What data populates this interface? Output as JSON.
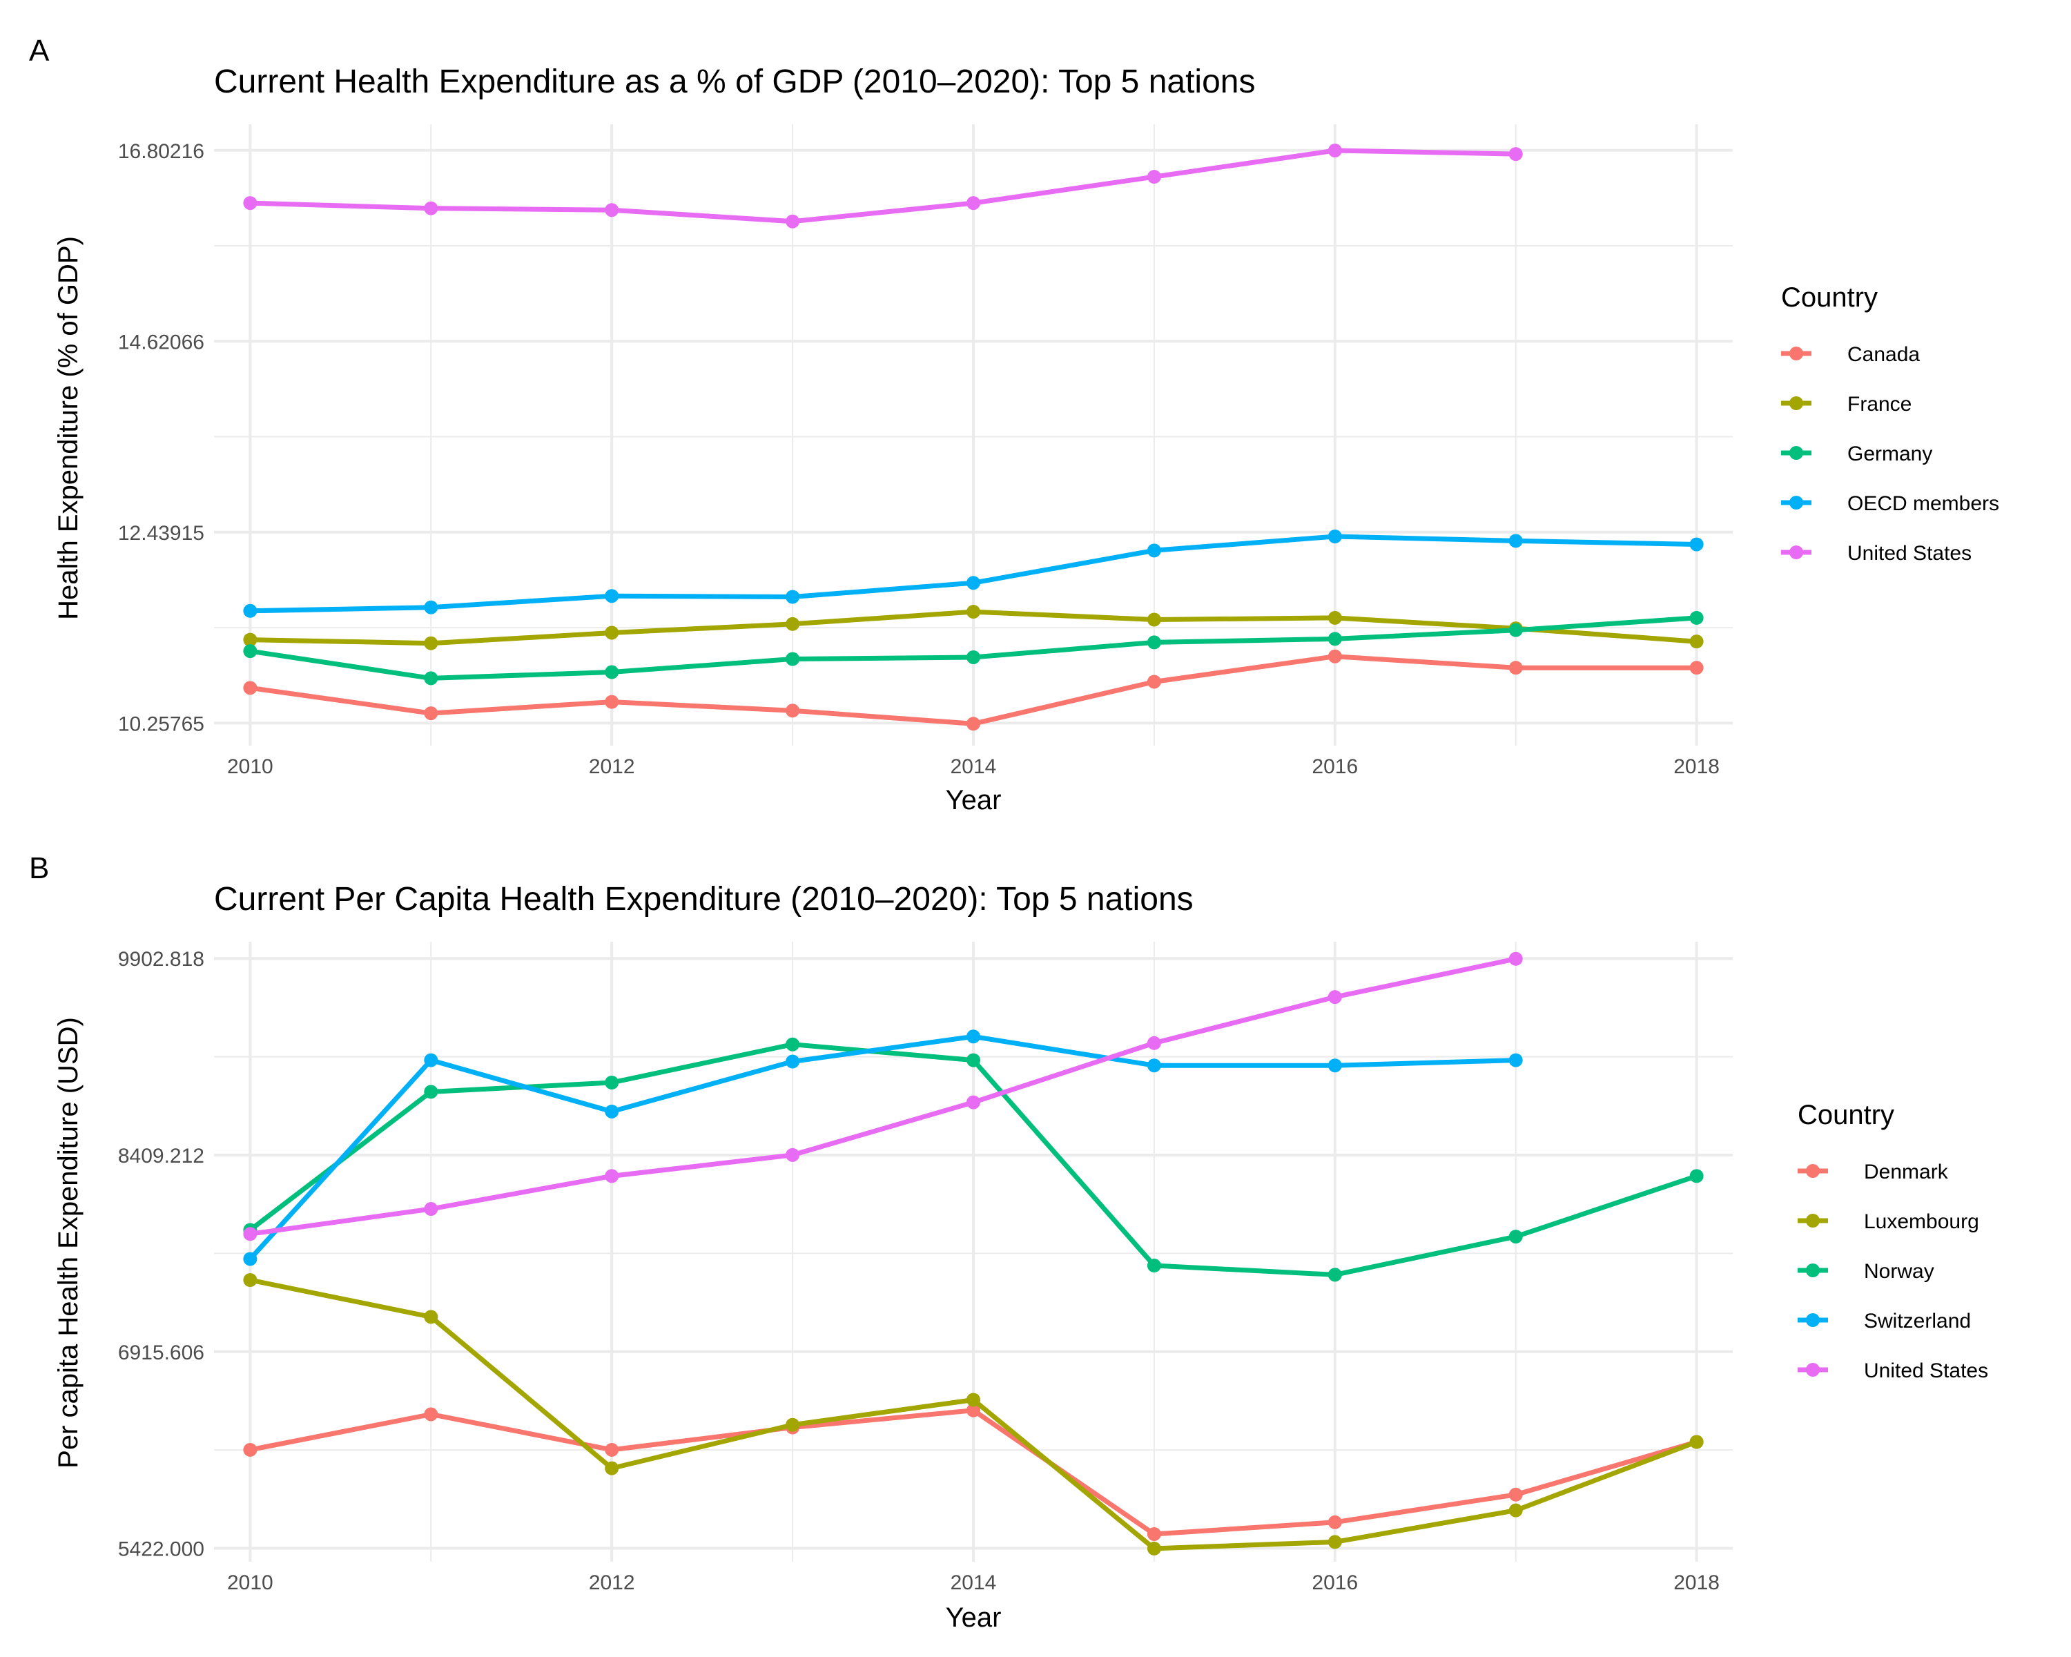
{
  "colors": {
    "red": "#F8766D",
    "olive": "#A3A500",
    "green": "#00BF7D",
    "blue": "#00B0F6",
    "pink": "#E76BF3"
  },
  "chart_data": [
    {
      "panel_label": "A",
      "type": "line",
      "title": "Current Health Expenditure as a % of GDP (2010–2020): Top 5 nations",
      "xlabel": "Year",
      "ylabel": "Health Expenditure (% of GDP)",
      "x_ticks": [
        "2010",
        "2012",
        "2014",
        "2016",
        "2018"
      ],
      "y_ticks": [
        "10.25765",
        "12.43915",
        "14.62066",
        "16.80216"
      ],
      "xlim": [
        2009.8,
        2018.2
      ],
      "ylim": [
        10.0,
        17.1
      ],
      "grid": true,
      "legend_title": "Country",
      "legend_position": "right",
      "series": [
        {
          "name": "Canada",
          "color": "#F8766D",
          "x": [
            2010,
            2011,
            2012,
            2013,
            2014,
            2015,
            2016,
            2017,
            2018
          ],
          "y": [
            10.66,
            10.37,
            10.5,
            10.4,
            10.25,
            10.73,
            11.02,
            10.89,
            10.89
          ]
        },
        {
          "name": "France",
          "color": "#A3A500",
          "x": [
            2010,
            2011,
            2012,
            2013,
            2014,
            2015,
            2016,
            2017,
            2018
          ],
          "y": [
            11.21,
            11.17,
            11.29,
            11.39,
            11.53,
            11.44,
            11.46,
            11.34,
            11.19
          ]
        },
        {
          "name": "Germany",
          "color": "#00BF7D",
          "x": [
            2010,
            2011,
            2012,
            2013,
            2014,
            2015,
            2016,
            2017,
            2018
          ],
          "y": [
            11.08,
            10.77,
            10.84,
            10.99,
            11.01,
            11.18,
            11.22,
            11.32,
            11.46
          ]
        },
        {
          "name": "OECD members",
          "color": "#00B0F6",
          "x": [
            2010,
            2011,
            2012,
            2013,
            2014,
            2015,
            2016,
            2017,
            2018
          ],
          "y": [
            11.54,
            11.58,
            11.71,
            11.7,
            11.86,
            12.23,
            12.39,
            12.34,
            12.3
          ]
        },
        {
          "name": "United States",
          "color": "#E76BF3",
          "x": [
            2010,
            2011,
            2012,
            2013,
            2014,
            2015,
            2016,
            2017
          ],
          "y": [
            16.2,
            16.14,
            16.12,
            15.99,
            16.2,
            16.5,
            16.8,
            16.76
          ]
        }
      ]
    },
    {
      "panel_label": "B",
      "type": "line",
      "title": "Current Per Capita Health Expenditure (2010–2020): Top 5 nations",
      "xlabel": "Year",
      "ylabel": "Per capita Health Expenditure (USD)",
      "x_ticks": [
        "2010",
        "2012",
        "2014",
        "2016",
        "2018"
      ],
      "y_ticks": [
        "5422.000",
        "6915.606",
        "8409.212",
        "9902.818"
      ],
      "xlim": [
        2009.8,
        2018.2
      ],
      "ylim": [
        5320,
        10030
      ],
      "grid": true,
      "legend_title": "Country",
      "legend_position": "right",
      "series": [
        {
          "name": "Denmark",
          "color": "#F8766D",
          "x": [
            2010,
            2011,
            2012,
            2013,
            2014,
            2015,
            2016,
            2017,
            2018
          ],
          "y": [
            6170,
            6440,
            6170,
            6340,
            6470,
            5530,
            5620,
            5830,
            6230
          ]
        },
        {
          "name": "Luxembourg",
          "color": "#A3A500",
          "x": [
            2010,
            2011,
            2012,
            2013,
            2014,
            2015,
            2016,
            2017,
            2018
          ],
          "y": [
            7460,
            7180,
            6030,
            6360,
            6550,
            5420,
            5470,
            5710,
            6230
          ]
        },
        {
          "name": "Norway",
          "color": "#00BF7D",
          "x": [
            2010,
            2011,
            2012,
            2013,
            2014,
            2015,
            2016,
            2017,
            2018
          ],
          "y": [
            7840,
            8890,
            8960,
            9250,
            9130,
            7570,
            7500,
            7790,
            8250
          ]
        },
        {
          "name": "Switzerland",
          "color": "#00B0F6",
          "x": [
            2010,
            2011,
            2012,
            2013,
            2014,
            2015,
            2016,
            2017
          ],
          "y": [
            7620,
            9130,
            8740,
            9120,
            9310,
            9090,
            9090,
            9130
          ]
        },
        {
          "name": "United States",
          "color": "#E76BF3",
          "x": [
            2010,
            2011,
            2012,
            2013,
            2014,
            2015,
            2016,
            2017
          ],
          "y": [
            7810,
            8000,
            8250,
            8410,
            8810,
            9260,
            9610,
            9900
          ]
        }
      ]
    }
  ]
}
